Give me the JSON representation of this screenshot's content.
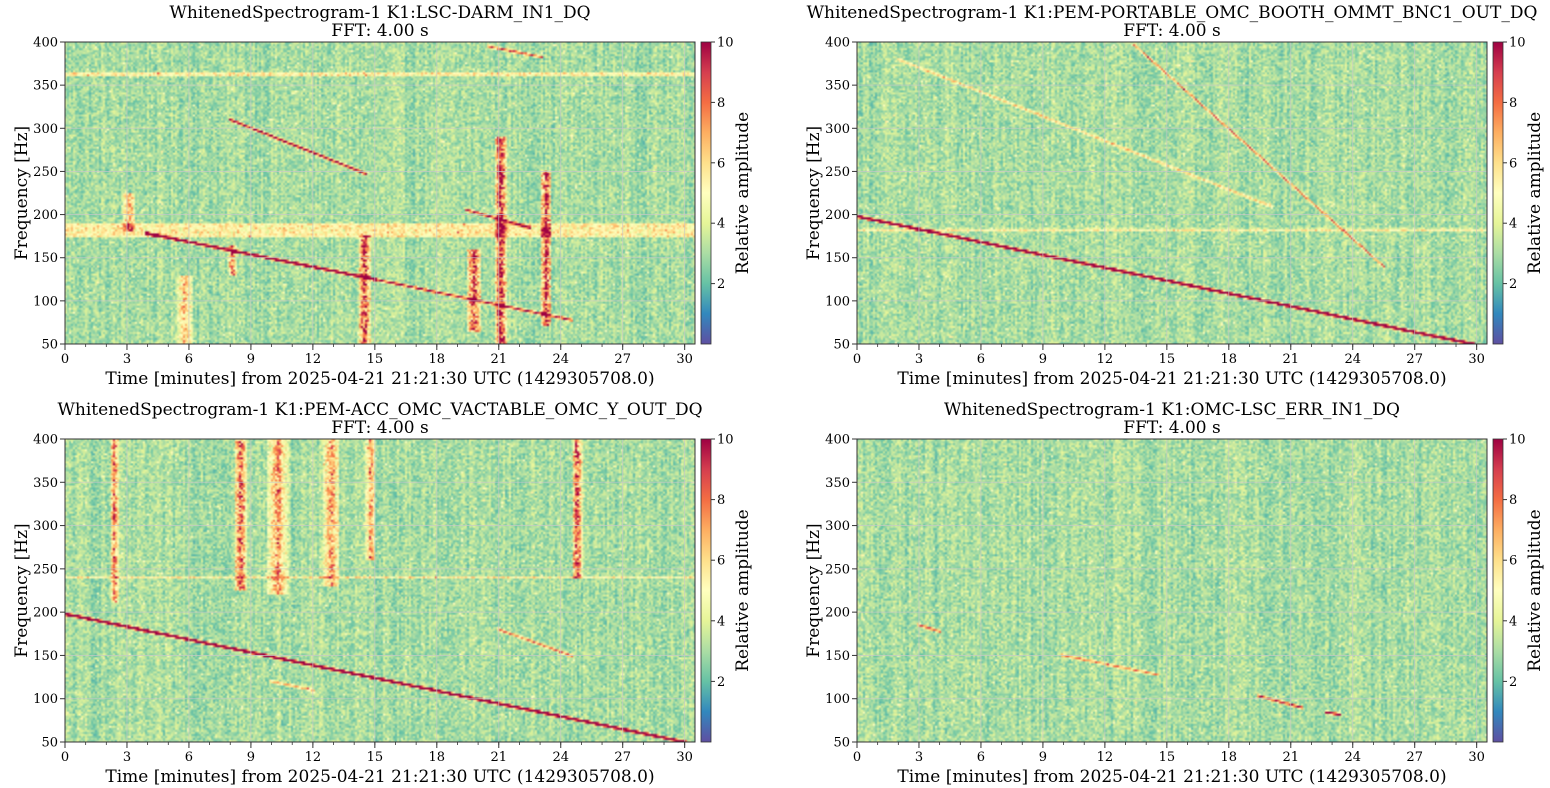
{
  "chart_data": [
    {
      "type": "heatmap",
      "title": "WhitenedSpectrogram-1 K1:LSC-DARM_IN1_DQ",
      "subtitle": "FFT: 4.00 s",
      "xlabel": "Time [minutes] from 2025-04-21 21:21:30 UTC (1429305708.0)",
      "ylabel": "Frequency [Hz]",
      "colorbar_label": "Relative amplitude",
      "xlim": [
        0,
        30.5
      ],
      "ylim": [
        50,
        400
      ],
      "xticks": [
        "0",
        "3",
        "6",
        "9",
        "12",
        "15",
        "18",
        "21",
        "24",
        "27",
        "30"
      ],
      "yticks": [
        "50",
        "100",
        "150",
        "200",
        "250",
        "300",
        "350",
        "400"
      ],
      "clim": [
        0,
        10
      ],
      "cticks": [
        "2",
        "4",
        "6",
        "8",
        "10"
      ],
      "grid": true,
      "lines": [
        {
          "x": [
            4,
            15
          ],
          "y": [
            178,
            125
          ],
          "strength": 0.95
        },
        {
          "x": [
            15,
            24.5
          ],
          "y": [
            125,
            78
          ],
          "strength": 0.6
        },
        {
          "x": [
            8,
            14.5
          ],
          "y": [
            310,
            248
          ],
          "strength": 0.7
        },
        {
          "x": [
            19.5,
            22.5
          ],
          "y": [
            205,
            185
          ],
          "strength": 0.6
        },
        {
          "x": [
            20.5,
            23
          ],
          "y": [
            395,
            383
          ],
          "strength": 0.5
        }
      ],
      "bursts": [
        {
          "x": 3.1,
          "w": 0.6,
          "f0": 180,
          "f1": 225,
          "strength": 0.6
        },
        {
          "x": 5.8,
          "w": 0.8,
          "f0": 50,
          "f1": 130,
          "strength": 0.5
        },
        {
          "x": 8.1,
          "w": 0.4,
          "f0": 130,
          "f1": 165,
          "strength": 0.7
        },
        {
          "x": 14.5,
          "w": 0.6,
          "f0": 50,
          "f1": 175,
          "strength": 0.85
        },
        {
          "x": 19.8,
          "w": 0.7,
          "f0": 65,
          "f1": 160,
          "strength": 0.75
        },
        {
          "x": 21.1,
          "w": 0.6,
          "f0": 50,
          "f1": 290,
          "strength": 0.95
        },
        {
          "x": 23.3,
          "w": 0.5,
          "f0": 70,
          "f1": 250,
          "strength": 0.85
        }
      ],
      "bands": [
        {
          "f": 182,
          "w": 8,
          "strength": 0.3
        },
        {
          "f": 363,
          "w": 2,
          "strength": 0.3
        }
      ]
    },
    {
      "type": "heatmap",
      "title": "WhitenedSpectrogram-1 K1:PEM-PORTABLE_OMC_BOOTH_OMMT_BNC1_OUT_DQ",
      "subtitle": "FFT: 4.00 s",
      "xlabel": "Time [minutes] from 2025-04-21 21:21:30 UTC (1429305708.0)",
      "ylabel": "Frequency [Hz]",
      "colorbar_label": "Relative amplitude",
      "xlim": [
        0,
        30.5
      ],
      "ylim": [
        50,
        400
      ],
      "xticks": [
        "0",
        "3",
        "6",
        "9",
        "12",
        "15",
        "18",
        "21",
        "24",
        "27",
        "30"
      ],
      "yticks": [
        "50",
        "100",
        "150",
        "200",
        "250",
        "300",
        "350",
        "400"
      ],
      "clim": [
        0,
        10
      ],
      "cticks": [
        "2",
        "4",
        "6",
        "8",
        "10"
      ],
      "grid": true,
      "lines": [
        {
          "x": [
            0,
            29.8
          ],
          "y": [
            198,
            50
          ],
          "strength": 1.0
        },
        {
          "x": [
            13.5,
            25.5
          ],
          "y": [
            395,
            140
          ],
          "strength": 0.45
        },
        {
          "x": [
            2,
            20
          ],
          "y": [
            380,
            210
          ],
          "strength": 0.3
        },
        {
          "x": [
            0,
            30.5
          ],
          "y": [
            182,
            182
          ],
          "strength": 0.2
        }
      ],
      "bursts": [],
      "bands": []
    },
    {
      "type": "heatmap",
      "title": "WhitenedSpectrogram-1 K1:PEM-ACC_OMC_VACTABLE_OMC_Y_OUT_DQ",
      "subtitle": "FFT: 4.00 s",
      "xlabel": "Time [minutes] from 2025-04-21 21:21:30 UTC (1429305708.0)",
      "ylabel": "Frequency [Hz]",
      "colorbar_label": "Relative amplitude",
      "xlim": [
        0,
        30.5
      ],
      "ylim": [
        50,
        400
      ],
      "xticks": [
        "0",
        "3",
        "6",
        "9",
        "12",
        "15",
        "18",
        "21",
        "24",
        "27",
        "30"
      ],
      "yticks": [
        "50",
        "100",
        "150",
        "200",
        "250",
        "300",
        "350",
        "400"
      ],
      "clim": [
        0,
        10
      ],
      "cticks": [
        "2",
        "4",
        "6",
        "8",
        "10"
      ],
      "grid": true,
      "lines": [
        {
          "x": [
            0,
            30
          ],
          "y": [
            198,
            50
          ],
          "strength": 1.0
        },
        {
          "x": [
            21,
            24.5
          ],
          "y": [
            180,
            150
          ],
          "strength": 0.45
        },
        {
          "x": [
            10,
            12
          ],
          "y": [
            120,
            110
          ],
          "strength": 0.35
        }
      ],
      "bursts": [
        {
          "x": 2.4,
          "w": 0.4,
          "f0": 210,
          "f1": 400,
          "strength": 0.7
        },
        {
          "x": 8.5,
          "w": 0.6,
          "f0": 225,
          "f1": 400,
          "strength": 0.75
        },
        {
          "x": 10.3,
          "w": 1.0,
          "f0": 220,
          "f1": 400,
          "strength": 0.6
        },
        {
          "x": 12.9,
          "w": 0.8,
          "f0": 230,
          "f1": 400,
          "strength": 0.6
        },
        {
          "x": 14.8,
          "w": 0.5,
          "f0": 260,
          "f1": 400,
          "strength": 0.55
        },
        {
          "x": 24.8,
          "w": 0.5,
          "f0": 240,
          "f1": 400,
          "strength": 0.8
        }
      ],
      "bands": [
        {
          "f": 240,
          "w": 2,
          "strength": 0.3
        }
      ]
    },
    {
      "type": "heatmap",
      "title": "WhitenedSpectrogram-1 K1:OMC-LSC_ERR_IN1_DQ",
      "subtitle": "FFT: 4.00 s",
      "xlabel": "Time [minutes] from 2025-04-21 21:21:30 UTC (1429305708.0)",
      "ylabel": "Frequency [Hz]",
      "colorbar_label": "Relative amplitude",
      "xlim": [
        0,
        30.5
      ],
      "ylim": [
        50,
        400
      ],
      "xticks": [
        "0",
        "3",
        "6",
        "9",
        "12",
        "15",
        "18",
        "21",
        "24",
        "27",
        "30"
      ],
      "yticks": [
        "50",
        "100",
        "150",
        "200",
        "250",
        "300",
        "350",
        "400"
      ],
      "clim": [
        0,
        10
      ],
      "cticks": [
        "2",
        "4",
        "6",
        "8",
        "10"
      ],
      "grid": true,
      "lines": [
        {
          "x": [
            3,
            4
          ],
          "y": [
            185,
            178
          ],
          "strength": 0.5
        },
        {
          "x": [
            10,
            14.5
          ],
          "y": [
            150,
            128
          ],
          "strength": 0.4
        },
        {
          "x": [
            19.5,
            21.5
          ],
          "y": [
            103,
            90
          ],
          "strength": 0.6
        },
        {
          "x": [
            22.8,
            23.3
          ],
          "y": [
            84,
            82
          ],
          "strength": 0.7
        }
      ],
      "bursts": [],
      "bands": []
    }
  ]
}
